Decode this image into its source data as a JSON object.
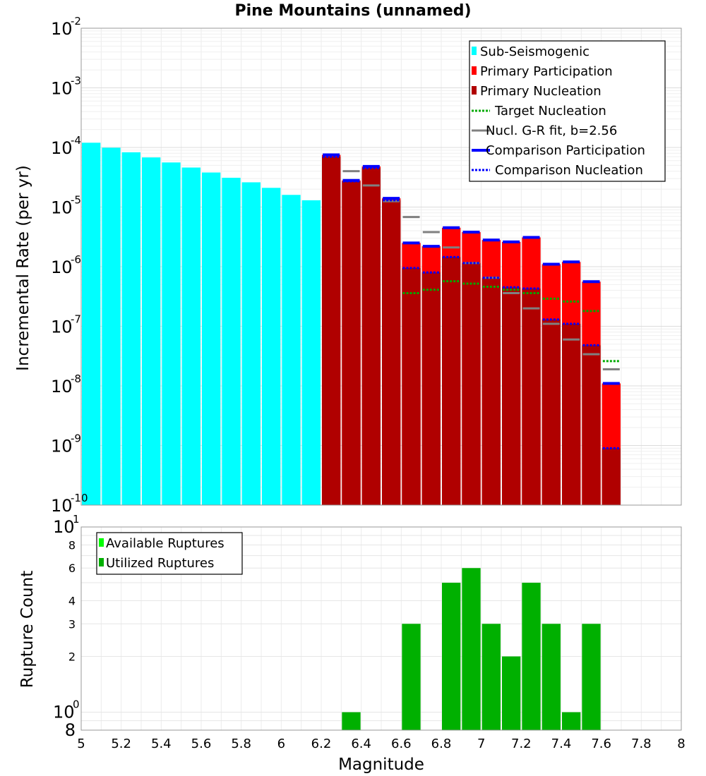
{
  "chart_data": [
    {
      "type": "bar",
      "title": "Pine Mountains (unnamed)",
      "xlabel": "",
      "ylabel": "Incremental Rate (per yr)",
      "yscale": "log",
      "xlim": [
        5,
        8
      ],
      "ylim": [
        1e-10,
        0.01
      ],
      "ytick_labels": [
        {
          "value": 0.01,
          "base": "10",
          "exp": "-2"
        },
        {
          "value": 0.001,
          "base": "10",
          "exp": "-3"
        },
        {
          "value": 0.0001,
          "base": "10",
          "exp": "-4"
        },
        {
          "value": 1e-05,
          "base": "10",
          "exp": "-5"
        },
        {
          "value": 1e-06,
          "base": "10",
          "exp": "-6"
        },
        {
          "value": 1e-07,
          "base": "10",
          "exp": "-7"
        },
        {
          "value": 1e-08,
          "base": "10",
          "exp": "-8"
        },
        {
          "value": 1e-09,
          "base": "10",
          "exp": "-9"
        },
        {
          "value": 1e-10,
          "base": "10",
          "exp": "-10"
        }
      ],
      "legend": [
        {
          "label": "Sub-Seismogenic",
          "color": "#00ffff",
          "style": "bar"
        },
        {
          "label": "Primary Participation",
          "color": "#ff0000",
          "style": "bar"
        },
        {
          "label": "Primary Nucleation",
          "color": "#b00000",
          "style": "bar"
        },
        {
          "label": "Target Nucleation",
          "color": "#00aa00",
          "style": "dotted"
        },
        {
          "label": "Nucl. G-R fit, b=2.56",
          "color": "#808080",
          "style": "solid"
        },
        {
          "label": "Comparison Participation",
          "color": "#0000ff",
          "style": "solid"
        },
        {
          "label": "Comparison Nucleation",
          "color": "#0000ff",
          "style": "dotted"
        }
      ],
      "legend_position": "top-right",
      "bin_width": 0.1,
      "series": [
        {
          "name": "Sub-Seismogenic",
          "x": [
            5.05,
            5.15,
            5.25,
            5.35,
            5.45,
            5.55,
            5.65,
            5.75,
            5.85,
            5.95,
            6.05,
            6.15
          ],
          "values": [
            0.00012,
            9.9e-05,
            8.3e-05,
            6.8e-05,
            5.6e-05,
            4.6e-05,
            3.8e-05,
            3.1e-05,
            2.6e-05,
            2.1e-05,
            1.6e-05,
            1.3e-05
          ]
        },
        {
          "name": "Primary Participation",
          "x": [
            6.25,
            6.35,
            6.45,
            6.55,
            6.65,
            6.75,
            6.85,
            6.95,
            7.05,
            7.15,
            7.25,
            7.35,
            7.45,
            7.55,
            7.65
          ],
          "values": [
            7.5e-05,
            2.8e-05,
            4.8e-05,
            1.4e-05,
            2.5e-06,
            2.2e-06,
            4.5e-06,
            3.8e-06,
            2.8e-06,
            2.6e-06,
            3.1e-06,
            1.1e-06,
            1.2e-06,
            5.6e-07,
            1.1e-08
          ]
        },
        {
          "name": "Primary Nucleation",
          "x": [
            6.25,
            6.35,
            6.45,
            6.55,
            6.65,
            6.75,
            6.85,
            6.95,
            7.05,
            7.15,
            7.25,
            7.35,
            7.45,
            7.55,
            7.65
          ],
          "values": [
            7e-05,
            2.7e-05,
            4.5e-05,
            1.3e-05,
            9.5e-07,
            8e-07,
            1.45e-06,
            1.15e-06,
            6.5e-07,
            4.5e-07,
            4.3e-07,
            1.3e-07,
            1.1e-07,
            4.8e-08,
            9e-10
          ]
        },
        {
          "name": "Target Nucleation",
          "x": [
            6.65,
            6.75,
            6.85,
            6.95,
            7.05,
            7.15,
            7.25,
            7.35,
            7.45,
            7.55,
            7.65
          ],
          "values": [
            3.6e-07,
            4.1e-07,
            5.7e-07,
            5.2e-07,
            4.6e-07,
            4.1e-07,
            3.6e-07,
            2.9e-07,
            2.6e-07,
            1.8e-07,
            2.6e-08
          ]
        },
        {
          "name": "Nucl. G-R fit, b=2.56",
          "x": [
            6.35,
            6.45,
            6.55,
            6.65,
            6.75,
            6.85,
            6.95,
            7.05,
            7.15,
            7.25,
            7.35,
            7.45,
            7.55,
            7.65
          ],
          "values": [
            4e-05,
            2.3e-05,
            1.25e-05,
            6.8e-06,
            3.8e-06,
            2.1e-06,
            1.15e-06,
            6.5e-07,
            3.6e-07,
            2e-07,
            1.1e-07,
            6e-08,
            3.4e-08,
            1.9e-08
          ]
        },
        {
          "name": "Comparison Participation",
          "x": [
            6.25,
            6.35,
            6.45,
            6.55,
            6.65,
            6.75,
            6.85,
            6.95,
            7.05,
            7.15,
            7.25,
            7.35,
            7.45,
            7.55,
            7.65
          ],
          "values": [
            7.5e-05,
            2.8e-05,
            4.8e-05,
            1.4e-05,
            2.5e-06,
            2.2e-06,
            4.5e-06,
            3.8e-06,
            2.8e-06,
            2.6e-06,
            3.1e-06,
            1.1e-06,
            1.2e-06,
            5.6e-07,
            1.1e-08
          ]
        },
        {
          "name": "Comparison Nucleation",
          "x": [
            6.25,
            6.35,
            6.45,
            6.55,
            6.65,
            6.75,
            6.85,
            6.95,
            7.05,
            7.15,
            7.25,
            7.35,
            7.45,
            7.55,
            7.65
          ],
          "values": [
            7e-05,
            2.7e-05,
            4.5e-05,
            1.3e-05,
            9.5e-07,
            8e-07,
            1.45e-06,
            1.15e-06,
            6.5e-07,
            4.5e-07,
            4.3e-07,
            1.3e-07,
            1.1e-07,
            4.8e-08,
            9e-10
          ]
        }
      ]
    },
    {
      "type": "bar",
      "title": "",
      "xlabel": "Magnitude",
      "ylabel": "Rupture Count",
      "yscale": "log",
      "xlim": [
        5,
        8
      ],
      "ylim": [
        0.8,
        10
      ],
      "xtick_labels": [
        "5",
        "5.2",
        "5.4",
        "5.6",
        "5.8",
        "6",
        "6.2",
        "6.4",
        "6.6",
        "6.8",
        "7",
        "7.2",
        "7.4",
        "7.6",
        "7.8",
        "8"
      ],
      "ytick_labels": [
        {
          "value": 10,
          "base": "10",
          "exp": "1"
        },
        {
          "value": 8,
          "label": "8"
        },
        {
          "value": 6,
          "label": "6"
        },
        {
          "value": 4,
          "label": "4"
        },
        {
          "value": 3,
          "label": "3"
        },
        {
          "value": 2,
          "label": "2"
        },
        {
          "value": 1,
          "base": "10",
          "exp": "0"
        },
        {
          "value": 0.8,
          "label": "8"
        }
      ],
      "legend": [
        {
          "label": "Available Ruptures",
          "color": "#00ff00",
          "style": "bar"
        },
        {
          "label": "Utilized Ruptures",
          "color": "#00b000",
          "style": "bar"
        }
      ],
      "legend_position": "top-left",
      "bin_width": 0.1,
      "series": [
        {
          "name": "Utilized Ruptures",
          "x": [
            6.35,
            6.65,
            6.85,
            6.95,
            7.05,
            7.15,
            7.25,
            7.35,
            7.45,
            7.55
          ],
          "values": [
            1,
            3,
            5,
            6,
            3,
            2,
            5,
            3,
            1,
            3
          ]
        }
      ]
    }
  ]
}
